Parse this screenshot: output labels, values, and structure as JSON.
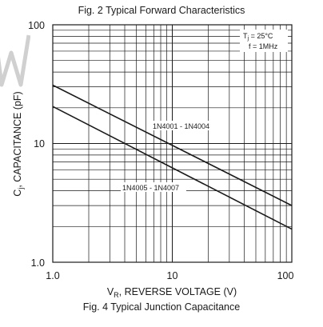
{
  "captions": {
    "top": "Fig. 2 Typical Forward Characteristics",
    "bottom": "Fig. 4 Typical Junction Capacitance"
  },
  "colors": {
    "line": "#1a1a1a",
    "grid": "#1a1a1a",
    "background": "#ffffff",
    "watermark": "#d0d0d0"
  },
  "chart_data": {
    "type": "line",
    "title": "Fig. 4 Typical Junction Capacitance",
    "xlabel_main": "V",
    "xlabel_sub": "R",
    "xlabel_rest": ", REVERSE VOLTAGE (V)",
    "ylabel_main": "C",
    "ylabel_sub": "j",
    "ylabel_rest": ", CAPACITANCE (pF)",
    "xscale": "log",
    "yscale": "log",
    "xlim": [
      1,
      100
    ],
    "ylim": [
      1,
      100
    ],
    "xtick_labels": [
      "1.0",
      "10",
      "100"
    ],
    "ytick_labels": [
      "1.0",
      "10",
      "100"
    ],
    "grid": true,
    "conditions": {
      "tj_main": "T",
      "tj_sub": "j",
      "tj_rest": " = 25°C",
      "freq": "f = 1MHz"
    },
    "series": [
      {
        "name": "1N4001 - 1N4004",
        "x": [
          1,
          100
        ],
        "y": [
          31,
          3.0
        ]
      },
      {
        "name": "1N4005 - 1N4007",
        "x": [
          1,
          100
        ],
        "y": [
          20.5,
          1.9
        ]
      }
    ]
  }
}
